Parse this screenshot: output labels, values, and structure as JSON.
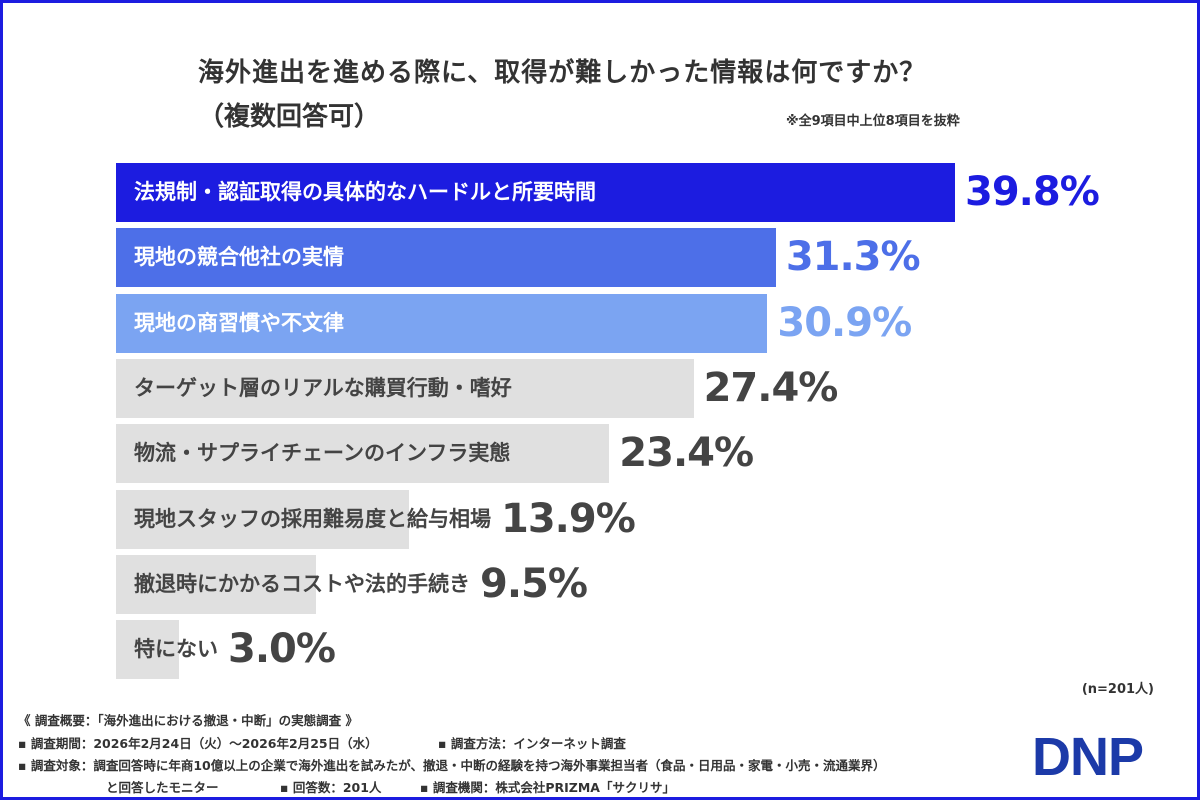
{
  "chart_data": {
    "type": "bar",
    "orientation": "horizontal",
    "title": "海外進出を進める際に、取得が難しかった情報は何ですか？",
    "subtitle": "（複数回答可）",
    "note": "※全9項目中上位8項目を抜粋",
    "categories": [
      "法規制・認証取得の具体的なハードルと所要時間",
      "現地の競合他社の実情",
      "現地の商習慣や不文律",
      "ターゲット層のリアルな購買行動・嗜好",
      "物流・サプライチェーンのインフラ実態",
      "現地スタッフの採用難易度と給与相場",
      "撤退時にかかるコストや法的手続き",
      "特にない"
    ],
    "values": [
      39.8,
      31.3,
      30.9,
      27.4,
      23.4,
      13.9,
      9.5,
      3.0
    ],
    "value_labels": [
      "39.8%",
      "31.3%",
      "30.9%",
      "27.4%",
      "23.4%",
      "13.9%",
      "9.5%",
      "3.0%"
    ],
    "bar_colors": [
      "#1c1ce0",
      "#4d6fe8",
      "#7ba4f2",
      "#e0e0e0",
      "#e0e0e0",
      "#e0e0e0",
      "#e0e0e0",
      "#e0e0e0"
    ],
    "label_colors": [
      "#ffffff",
      "#ffffff",
      "#ffffff",
      "#444444",
      "#444444",
      "#444444",
      "#444444",
      "#444444"
    ],
    "value_colors": [
      "#1c1ce0",
      "#4d6fe8",
      "#7ba4f2",
      "#444444",
      "#444444",
      "#444444",
      "#444444",
      "#444444"
    ],
    "xlim": [
      0,
      39.8
    ],
    "grid": false,
    "sample": "(n=201人)"
  },
  "footer": {
    "line1": "《 調査概要：「海外進出における撤退・中断」の実態調査 》",
    "line2a": "▪ 調査期間：2026年2月24日（火）～2026年2月25日（水）",
    "line2b": "▪ 調査方法：インターネット調査",
    "line3": "▪ 調査対象：調査回答時に年商10億以上の企業で海外進出を試みたが、撤退・中断の経験を持つ海外事業担当者（食品・日用品・家電・小売・流通業界）",
    "line4a": "と回答したモニター",
    "line4b": "▪ 回答数：201人",
    "line4c": "▪ 調査機関：株式会社PRIZMA「サクリサ」"
  },
  "logo": "DNP"
}
